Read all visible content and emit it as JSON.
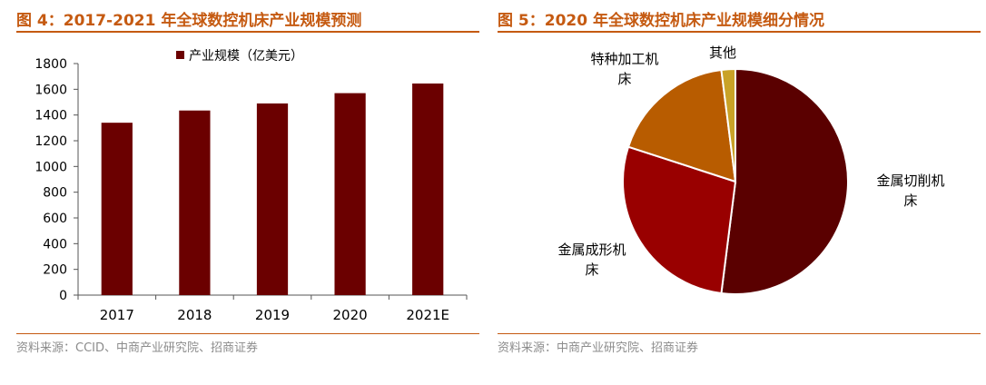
{
  "left": {
    "title": "图 4：2017-2021 年全球数控机床产业规模预测",
    "source": "资料来源：CCID、中商产业研究院、招商证券"
  },
  "right": {
    "title": "图 5：2020 年全球数控机床产业规模细分情况",
    "source": "资料来源：中商产业研究院、招商证券"
  },
  "colors": {
    "accent": "#c55a11",
    "bar": "#6b0000"
  },
  "chart_data": [
    {
      "type": "bar",
      "title": "图 4：2017-2021 年全球数控机床产业规模预测",
      "categories": [
        "2017",
        "2018",
        "2019",
        "2020",
        "2021E"
      ],
      "series": [
        {
          "name": "产业规模（亿美元）",
          "values": [
            1340,
            1435,
            1490,
            1570,
            1645
          ],
          "color": "#6b0000"
        }
      ],
      "ylim": [
        0,
        1800
      ],
      "yticks": [
        "0",
        "200",
        "400",
        "600",
        "800",
        "1000",
        "1200",
        "1400",
        "1600",
        "1800"
      ],
      "grid": false,
      "legend": "top"
    },
    {
      "type": "pie",
      "title": "图 5：2020 年全球数控机床产业规模细分情况",
      "slices": [
        {
          "label": "金属切削机床",
          "value": 52,
          "color": "#5a0000"
        },
        {
          "label": "金属成形机床",
          "value": 28,
          "color": "#990000"
        },
        {
          "label": "特种加工机床",
          "value": 18,
          "color": "#b85c00"
        },
        {
          "label": "其他",
          "value": 2,
          "color": "#c9a227"
        }
      ]
    }
  ]
}
